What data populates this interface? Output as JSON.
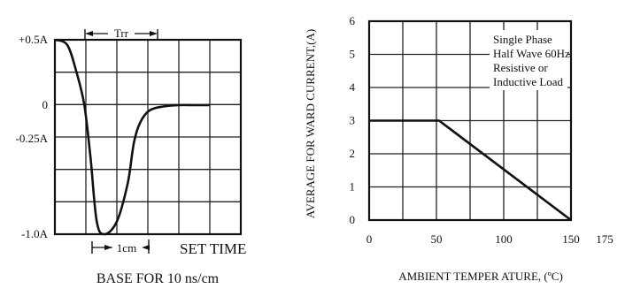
{
  "chart_data": [
    {
      "type": "line",
      "title": "",
      "xlabel": "BASE FOR 10 ns/cm",
      "ylabel": "",
      "y_tick_labels": [
        "+0.5A",
        "0",
        "-0.25A",
        "-1.0A"
      ],
      "y_tick_values": [
        0.5,
        0,
        -0.25,
        -1.0
      ],
      "grid": true,
      "annotations": {
        "trr": "Trr",
        "scale": "1cm",
        "set_time": "SET TIME"
      },
      "series": [
        {
          "x": [
            0,
            0.4,
            0.7,
            0.95,
            1.15,
            1.35,
            1.6,
            2.0,
            2.35,
            2.55,
            2.75,
            3.05,
            3.5,
            4.0,
            4.5,
            5.0
          ],
          "values": [
            0.5,
            0.46,
            0.25,
            0.0,
            -0.4,
            -0.9,
            -1.0,
            -0.9,
            -0.6,
            -0.28,
            -0.13,
            -0.04,
            -0.01,
            0.0,
            0.0,
            0.0
          ]
        }
      ]
    },
    {
      "type": "line",
      "title": "",
      "xlabel": "AMBIENT TEMPER ATURE, (ºC)",
      "ylabel": "AVERAGE FOR WARD CURRENT,(A)",
      "x_ticks": [
        0,
        50,
        100,
        150,
        175
      ],
      "y_ticks": [
        0,
        1,
        2,
        3,
        4,
        5,
        6
      ],
      "xlim": [
        0,
        150
      ],
      "ylim": [
        0,
        6
      ],
      "grid": true,
      "legend_text": [
        "Single Phase",
        "Half Wave 60Hz",
        "Resistive or",
        "Inductive Load"
      ],
      "series": [
        {
          "x": [
            0,
            52,
            150
          ],
          "values": [
            3,
            3,
            0
          ]
        }
      ]
    }
  ]
}
